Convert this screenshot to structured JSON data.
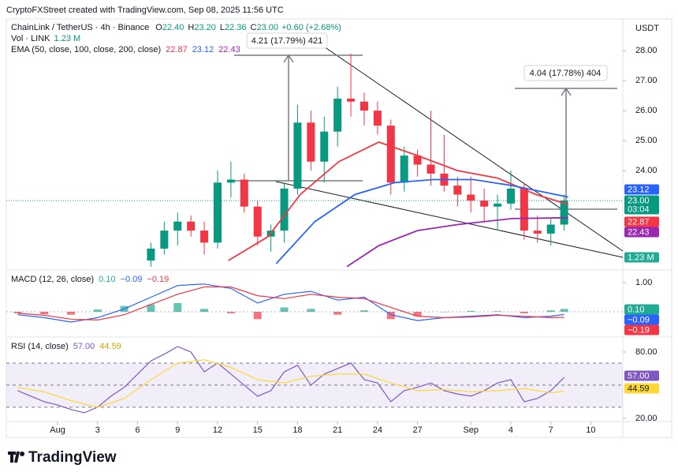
{
  "header": "CryptoFXStreet created with TradingView.com, Sep 08, 2025 11:56 UTC",
  "currency": "USDT",
  "legend": {
    "symbol": "ChainLink / TetherUS · 4h · Binance",
    "ohlc": [
      {
        "key": "O",
        "value": "22.40"
      },
      {
        "key": "H",
        "value": "23.20"
      },
      {
        "key": "L",
        "value": "22.36"
      },
      {
        "key": "C",
        "value": "23.00"
      }
    ],
    "change": "+0.60 (+2.68%)",
    "vol": "Vol · LINK",
    "vol_value": "1.23 M",
    "ema": "EMA (50, close, 100, close, 200, close)",
    "ema_values": [
      "22.87",
      "23.12",
      "22.43"
    ],
    "macd": "MACD (12, 26, close)",
    "macd_values": [
      "0.10",
      "−0.09",
      "−0.19"
    ],
    "rsi": "RSI (14, close)",
    "rsi_values": [
      "57.00",
      "44.59"
    ]
  },
  "measures": [
    "4.21 (17.79%) 421",
    "4.04 (17.78%) 404"
  ],
  "price_tags": [
    {
      "label": "23.12",
      "color": "#2962ff"
    },
    {
      "label": "23.00",
      "color": "#089981"
    },
    {
      "label": "03:04",
      "color": "#089981"
    },
    {
      "label": "22.87",
      "color": "#f23645"
    },
    {
      "label": "22.43",
      "color": "#9c27b0"
    },
    {
      "label": "1.23 M",
      "color": "#22ab94"
    }
  ],
  "macd_tags": [
    {
      "label": "0.10",
      "color": "#22ab94"
    },
    {
      "label": "−0.09",
      "color": "#2962ff"
    },
    {
      "label": "−0.19",
      "color": "#f23645"
    }
  ],
  "rsi_tags": [
    {
      "label": "57.00",
      "color": "#7e57c2"
    },
    {
      "label": "44.59",
      "color": "#fdd835"
    }
  ],
  "logo": "TradingView",
  "chart_data": [
    {
      "type": "candlestick",
      "xlim": [
        -3.85,
        42.4
      ],
      "ylim": [
        20.74,
        29.03
      ],
      "yticks": [
        {
          "value": 28,
          "label": "28.00"
        },
        {
          "value": 27,
          "label": "27.00"
        },
        {
          "value": 26,
          "label": "26.00"
        },
        {
          "value": 25,
          "label": "25.00"
        },
        {
          "value": 24,
          "label": "24.00"
        }
      ],
      "up_color": "#089981",
      "down_color": "#f23645",
      "x": [
        7,
        8,
        9,
        10,
        11,
        12,
        13,
        14,
        15,
        16,
        17,
        18,
        19,
        20,
        21,
        22,
        23,
        24,
        25,
        26,
        27,
        28,
        29,
        30,
        31,
        32,
        33,
        34,
        35,
        36,
        37,
        38
      ],
      "open": [
        21.0,
        21.4,
        22.0,
        22.3,
        22.0,
        21.6,
        23.6,
        23.7,
        22.8,
        21.8,
        22.0,
        23.4,
        25.6,
        24.3,
        25.3,
        26.4,
        26.3,
        26.0,
        25.5,
        23.6,
        24.5,
        24.2,
        23.9,
        23.5,
        23.2,
        23.0,
        22.8,
        22.9,
        23.4,
        22.0,
        21.9,
        22.2
      ],
      "high": [
        21.6,
        22.3,
        22.6,
        22.5,
        22.3,
        24.0,
        24.3,
        23.9,
        23.0,
        22.2,
        23.6,
        26.2,
        26.0,
        25.8,
        26.8,
        27.9,
        26.6,
        26.3,
        25.7,
        24.8,
        24.7,
        26.0,
        25.2,
        23.8,
        23.8,
        23.4,
        23.2,
        24.0,
        23.6,
        22.5,
        22.4,
        23.2
      ],
      "low": [
        20.8,
        21.2,
        21.5,
        21.8,
        21.2,
        21.4,
        23.1,
        22.6,
        21.5,
        21.3,
        21.6,
        23.2,
        24.0,
        23.6,
        24.8,
        25.8,
        25.5,
        25.2,
        23.2,
        23.3,
        23.8,
        23.5,
        23.3,
        22.8,
        22.6,
        22.3,
        22.0,
        22.7,
        21.7,
        21.6,
        21.5,
        22.0
      ],
      "close": [
        21.4,
        22.0,
        22.3,
        22.0,
        21.6,
        23.6,
        23.7,
        22.8,
        21.8,
        22.0,
        23.4,
        25.6,
        24.3,
        25.3,
        26.4,
        26.3,
        26.0,
        25.5,
        23.6,
        24.5,
        24.2,
        23.9,
        23.5,
        23.2,
        23.0,
        22.8,
        22.9,
        23.4,
        22.0,
        21.9,
        22.2,
        23.0
      ],
      "series": [
        {
          "color": "#f23645",
          "x": [
            12.8,
            15.8,
            18.2,
            21.1,
            24.1,
            27,
            30,
            33,
            35.9,
            38.3
          ],
          "values": [
            21.0,
            21.8,
            23.2,
            24.3,
            24.95,
            24.5,
            24.0,
            23.75,
            23.2,
            22.87
          ]
        },
        {
          "color": "#2962ff",
          "x": [
            16.4,
            19.3,
            22.3,
            25.3,
            28.2,
            31.2,
            34.1,
            38.3
          ],
          "values": [
            20.9,
            22.3,
            23.2,
            23.6,
            23.7,
            23.7,
            23.5,
            23.12
          ]
        },
        {
          "color": "#9c27b0",
          "x": [
            21.7,
            24.1,
            27,
            30,
            34.1,
            38.3
          ],
          "values": [
            20.8,
            21.5,
            22.0,
            22.2,
            22.4,
            22.43
          ]
        }
      ]
    },
    {
      "type": "macd",
      "xlim": [
        -3.85,
        42.4
      ],
      "ylim": [
        -0.81,
        1.35
      ],
      "yticks": [
        {
          "value": 1,
          "label": "1.00"
        }
      ],
      "x": [
        -3,
        -1,
        1,
        3,
        5,
        7,
        9,
        11,
        13,
        15,
        17,
        19,
        21,
        23,
        25,
        27,
        29,
        31,
        33,
        35,
        37,
        38
      ],
      "macd": {
        "color": "#2962ff",
        "values": [
          -0.1,
          -0.2,
          -0.35,
          -0.2,
          0.1,
          0.5,
          0.9,
          0.95,
          0.8,
          0.3,
          0.6,
          0.7,
          0.4,
          0.5,
          -0.1,
          -0.3,
          -0.2,
          -0.15,
          -0.1,
          -0.2,
          -0.15,
          -0.09
        ]
      },
      "signal": {
        "color": "#f23645",
        "values": [
          -0.05,
          -0.12,
          -0.25,
          -0.28,
          -0.1,
          0.25,
          0.6,
          0.85,
          0.85,
          0.55,
          0.45,
          0.6,
          0.5,
          0.45,
          0.15,
          -0.15,
          -0.2,
          -0.18,
          -0.12,
          -0.15,
          -0.2,
          -0.19
        ]
      },
      "histogram": {
        "up_color": "#22ab94",
        "down_color": "#f23645",
        "values": [
          -0.05,
          -0.08,
          -0.1,
          0.08,
          0.2,
          0.25,
          0.3,
          0.1,
          -0.05,
          -0.25,
          0.15,
          0.1,
          -0.1,
          0.05,
          -0.25,
          -0.15,
          0,
          0.03,
          0.02,
          -0.05,
          0.05,
          0.1
        ]
      }
    },
    {
      "type": "rsi",
      "xlim": [
        -3.85,
        42.4
      ],
      "ylim": [
        18.5,
        91.4
      ],
      "yticks": [
        {
          "value": 80,
          "label": "80.00"
        },
        {
          "value": 20,
          "label": "20.00"
        }
      ],
      "levels": [
        70,
        50,
        30
      ],
      "band_color": "#7e57c2",
      "xticks": [
        {
          "value": 0,
          "label": "Aug"
        },
        3,
        6,
        9,
        12,
        15,
        18,
        21,
        24,
        27,
        {
          "value": 31,
          "label": "Sep"
        },
        {
          "value": 34,
          "label": "4"
        },
        {
          "value": 37,
          "label": "7"
        },
        {
          "value": 40,
          "label": "10"
        }
      ],
      "series": [
        {
          "color": "#7e57c2",
          "x": [
            -3,
            -2,
            -1,
            0,
            1,
            2,
            3,
            4,
            5,
            6,
            7,
            8,
            9,
            10,
            11,
            12,
            13,
            14,
            15,
            16,
            17,
            18,
            19,
            20,
            21,
            22,
            23,
            24,
            25,
            26,
            27,
            28,
            29,
            30,
            31,
            32,
            33,
            34,
            35,
            36,
            37,
            38
          ],
          "values": [
            45,
            40,
            35,
            32,
            28,
            25,
            30,
            40,
            48,
            60,
            72,
            78,
            85,
            80,
            62,
            70,
            60,
            50,
            40,
            45,
            62,
            68,
            50,
            60,
            65,
            70,
            55,
            52,
            35,
            45,
            48,
            52,
            45,
            42,
            40,
            45,
            52,
            55,
            35,
            38,
            45,
            57
          ]
        },
        {
          "color": "#fdd835",
          "x": [
            -3,
            -1,
            1,
            3,
            5,
            7,
            9,
            11,
            13,
            15,
            17,
            19,
            21,
            23,
            25,
            27,
            29,
            31,
            33,
            35,
            37,
            38
          ],
          "values": [
            48,
            44,
            36,
            30,
            38,
            55,
            70,
            73,
            66,
            55,
            52,
            58,
            60,
            60,
            52,
            45,
            46,
            44,
            45,
            47,
            43,
            44.59
          ]
        }
      ]
    }
  ]
}
